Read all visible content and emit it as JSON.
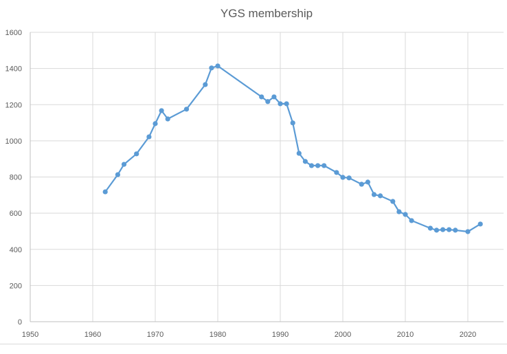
{
  "chart_data": {
    "type": "line",
    "title": "YGS membership",
    "xlabel": "",
    "ylabel": "",
    "xlim": [
      1950,
      2025
    ],
    "ylim": [
      0,
      1600
    ],
    "x_ticks": [
      1950,
      1960,
      1970,
      1980,
      1990,
      2000,
      2010,
      2020
    ],
    "y_ticks": [
      0,
      200,
      400,
      600,
      800,
      1000,
      1200,
      1400,
      1600
    ],
    "grid": true,
    "legend": null,
    "series": [
      {
        "name": "YGS membership",
        "color": "#5b9bd5",
        "markers": true,
        "x": [
          1962,
          1964,
          1965,
          1967,
          1969,
          1970,
          1971,
          1972,
          1975,
          1978,
          1979,
          1980,
          1987,
          1988,
          1989,
          1990,
          1991,
          1992,
          1993,
          1994,
          1995,
          1996,
          1997,
          1999,
          2000,
          2001,
          2003,
          2004,
          2005,
          2006,
          2008,
          2009,
          2010,
          2011,
          2014,
          2015,
          2016,
          2017,
          2018,
          2020,
          2022
        ],
        "values": [
          718,
          813,
          870,
          928,
          1022,
          1095,
          1167,
          1121,
          1175,
          1311,
          1403,
          1414,
          1243,
          1217,
          1243,
          1205,
          1205,
          1099,
          931,
          886,
          863,
          863,
          863,
          825,
          798,
          795,
          760,
          772,
          703,
          696,
          665,
          608,
          593,
          559,
          517,
          506,
          509,
          509,
          506,
          498,
          540
        ]
      }
    ]
  }
}
